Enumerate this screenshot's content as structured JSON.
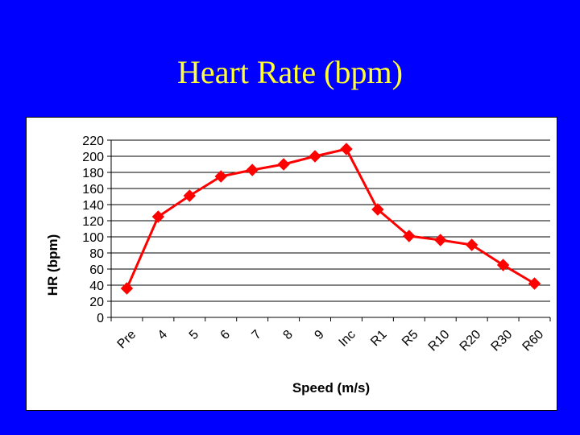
{
  "slide": {
    "title": "Heart Rate (bpm)",
    "background_color": "#0000ff",
    "title_color": "#ffff33"
  },
  "chart_data": {
    "type": "line",
    "title": "",
    "xlabel": "Speed (m/s)",
    "ylabel": "HR (bpm)",
    "categories": [
      "Pre",
      "4",
      "5",
      "6",
      "7",
      "8",
      "9",
      "Inc",
      "R1",
      "R5",
      "R10",
      "R20",
      "R30",
      "R60"
    ],
    "series": [
      {
        "values": [
          36,
          125,
          151,
          175,
          183,
          190,
          200,
          209,
          134,
          101,
          96,
          90,
          65,
          42
        ],
        "color": "#ff0000",
        "marker": "diamond"
      }
    ],
    "ylim": [
      0,
      220
    ],
    "yticks": [
      0,
      20,
      40,
      60,
      80,
      100,
      120,
      140,
      160,
      180,
      200,
      220
    ],
    "grid": true,
    "legend": "none"
  }
}
